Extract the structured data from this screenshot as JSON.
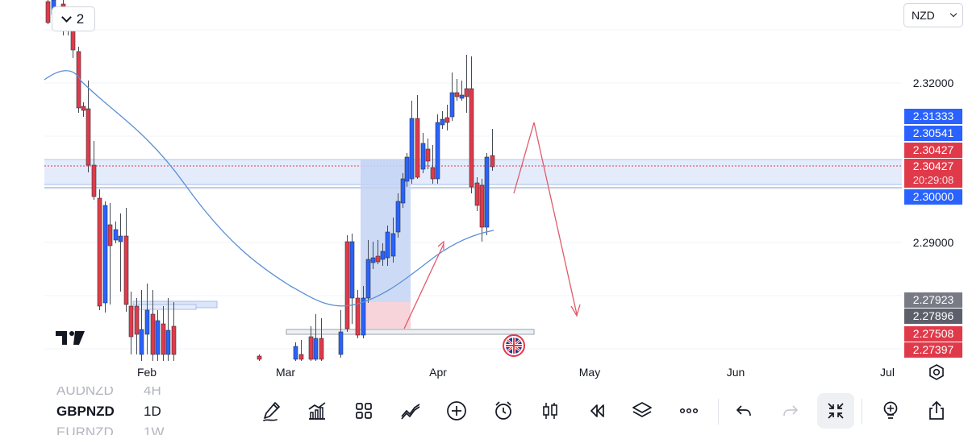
{
  "header": {
    "legend_count": "2",
    "currency": "NZD"
  },
  "price_axis": {
    "labels": [
      {
        "text": "2.32000",
        "price": 2.32,
        "style": "plain"
      },
      {
        "text": "2.29000",
        "price": 2.29,
        "style": "plain"
      }
    ],
    "badges": [
      {
        "text": "2.31333",
        "price": 2.31333,
        "style": "blue"
      },
      {
        "text": "2.30541",
        "price": 2.30541,
        "style": "blue"
      },
      {
        "text": "2.30427",
        "price": 2.30427,
        "style": "red"
      },
      {
        "text": "2.30427",
        "price": 2.30427,
        "style": "red"
      },
      {
        "text": "20:29:08",
        "price": 2.3018,
        "style": "timer"
      },
      {
        "text": "2.30000",
        "price": 2.3,
        "style": "blue"
      },
      {
        "text": "2.27923",
        "price": 2.27923,
        "style": "gray"
      },
      {
        "text": "2.27896",
        "price": 2.27896,
        "style": "dkgray"
      },
      {
        "text": "2.27508",
        "price": 2.27508,
        "style": "red"
      },
      {
        "text": "2.27397",
        "price": 2.27397,
        "style": "red"
      }
    ]
  },
  "time_axis": [
    {
      "label": "Feb",
      "pos": 182
    },
    {
      "label": "Mar",
      "pos": 354
    },
    {
      "label": "Apr",
      "pos": 543
    },
    {
      "label": "May",
      "pos": 731
    },
    {
      "label": "Jun",
      "pos": 912
    },
    {
      "label": "Jul",
      "pos": 1100
    }
  ],
  "symbols": [
    {
      "name": "AUDNZD",
      "tf": "4H",
      "state": "faded"
    },
    {
      "name": "GBPNZD",
      "tf": "1D",
      "state": "active"
    },
    {
      "name": "EURNZD",
      "tf": "1W",
      "state": "faded"
    }
  ],
  "colors": {
    "up": "#2962ff",
    "down": "#e03a4a",
    "ma": "#5b8fd6",
    "drawing": "#e05a6a",
    "zone_fill": "#dbe6fb"
  },
  "toolbar": [
    {
      "icon": "pen-icon",
      "name": "draw-tool-button"
    },
    {
      "icon": "indicators-icon",
      "name": "indicators-button"
    },
    {
      "icon": "grid-icon",
      "name": "layout-button"
    },
    {
      "icon": "line-chart-icon",
      "name": "compare-button"
    },
    {
      "icon": "plus-circle-icon",
      "name": "add-button"
    },
    {
      "icon": "alarm-icon",
      "name": "alert-button"
    },
    {
      "icon": "candles-icon",
      "name": "chart-type-button"
    },
    {
      "icon": "replay-icon",
      "name": "replay-button"
    },
    {
      "icon": "layers-icon",
      "name": "layers-button"
    },
    {
      "icon": "more-icon",
      "name": "more-button"
    },
    {
      "icon": "undo-icon",
      "name": "undo-button"
    },
    {
      "icon": "redo-icon",
      "name": "redo-button"
    },
    {
      "icon": "collapse-icon",
      "name": "fullscreen-exit-button"
    },
    {
      "icon": "bulb-icon",
      "name": "ideas-button"
    },
    {
      "icon": "share-icon",
      "name": "share-button"
    }
  ]
}
